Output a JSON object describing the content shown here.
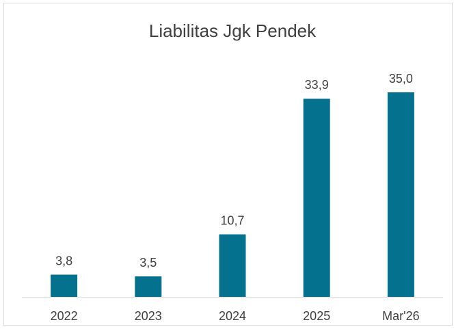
{
  "chart_data": {
    "type": "bar",
    "title": "Liabilitas Jgk Pendek",
    "categories": [
      "2022",
      "2023",
      "2024",
      "2025",
      "Mar'26"
    ],
    "values": [
      3.8,
      3.5,
      10.7,
      33.9,
      35.0
    ],
    "value_labels": [
      "3,8",
      "3,5",
      "10,7",
      "33,9",
      "35,0"
    ],
    "color": "#04728f"
  }
}
